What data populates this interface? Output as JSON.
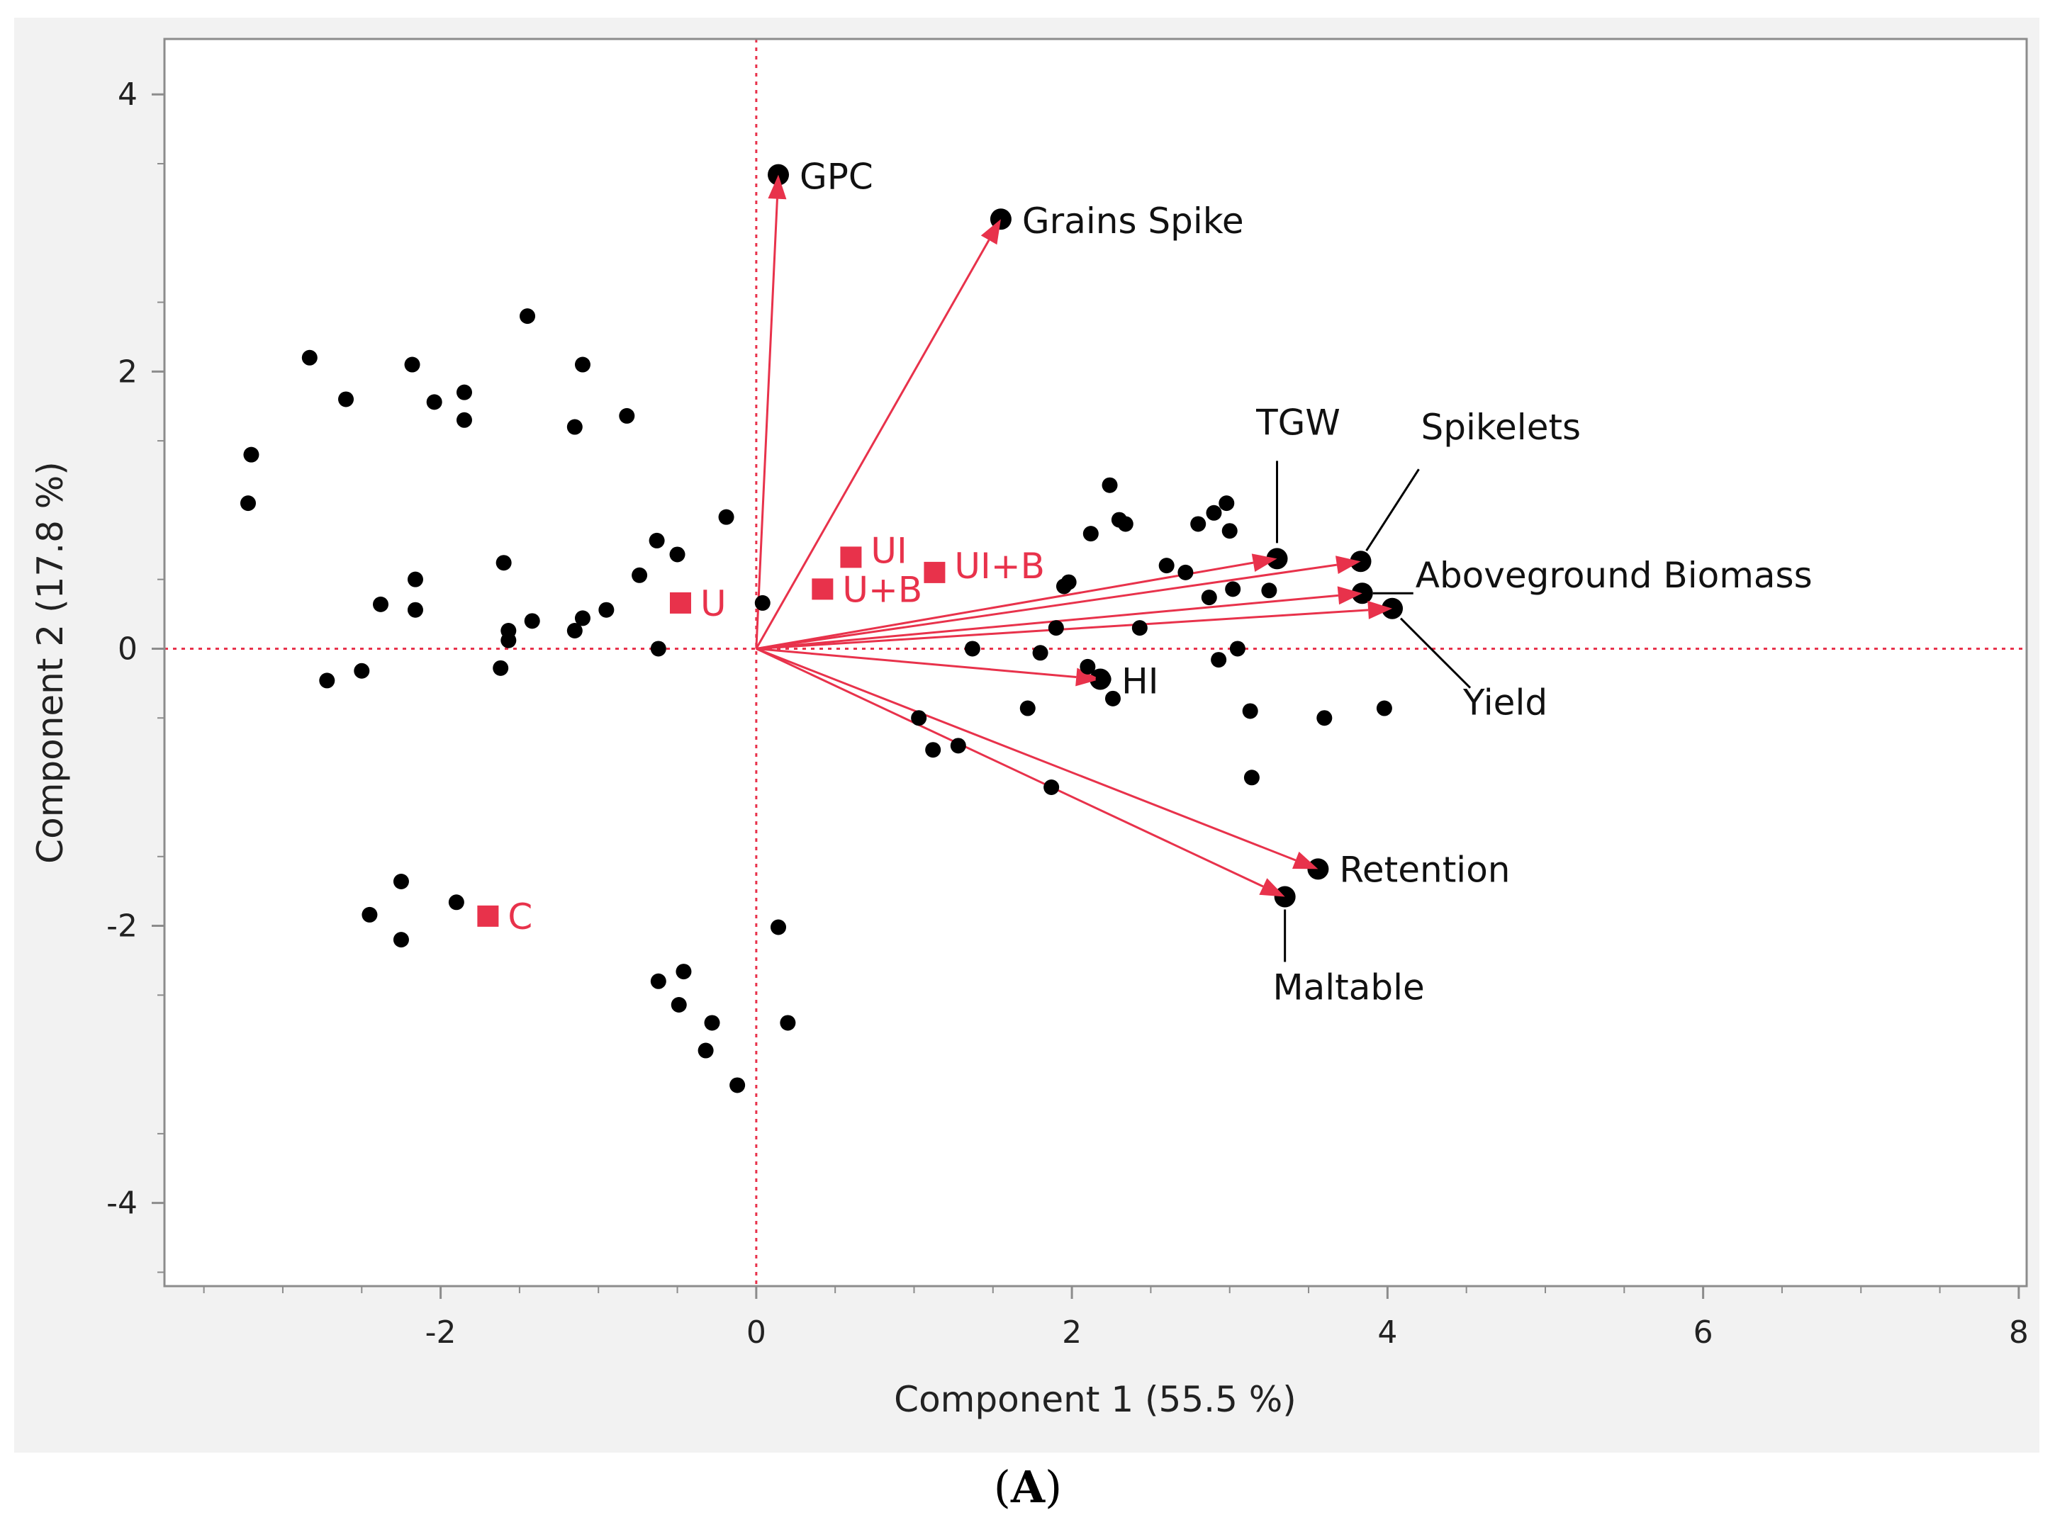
{
  "chart_data": {
    "type": "scatter",
    "subtype": "pca-biplot",
    "title": "",
    "caption": {
      "open": "(",
      "letter": "A",
      "close": ")"
    },
    "xlabel": "Component 1  (55.5 %)",
    "ylabel": "Component 2  (17.8 %)",
    "xlim": [
      -3.75,
      8.05
    ],
    "ylim": [
      -4.6,
      4.4
    ],
    "xticks": [
      -2,
      0,
      2,
      4,
      6,
      8
    ],
    "yticks": [
      -4,
      -2,
      0,
      2,
      4
    ],
    "grid": false,
    "colors": {
      "background": "#f2f2f2",
      "plot_background": "#ffffff",
      "points": "#000000",
      "vectors": "#e8324b",
      "reference_lines": "#e8324b",
      "group_markers": "#e8324b",
      "frame": "#8c8c8c",
      "leader": "#000000"
    },
    "points": [
      [
        -3.2,
        1.4
      ],
      [
        -3.22,
        1.05
      ],
      [
        -2.83,
        2.1
      ],
      [
        -2.6,
        1.8
      ],
      [
        -2.72,
        -0.23
      ],
      [
        -2.5,
        -0.16
      ],
      [
        -2.38,
        0.32
      ],
      [
        -2.18,
        2.05
      ],
      [
        -2.16,
        0.5
      ],
      [
        -2.16,
        0.28
      ],
      [
        -2.04,
        1.78
      ],
      [
        -1.85,
        1.85
      ],
      [
        -1.85,
        1.65
      ],
      [
        -1.6,
        0.62
      ],
      [
        -1.57,
        0.13
      ],
      [
        -1.57,
        0.06
      ],
      [
        -1.62,
        -0.14
      ],
      [
        -1.45,
        2.4
      ],
      [
        -1.42,
        0.2
      ],
      [
        -1.15,
        0.13
      ],
      [
        -1.15,
        1.6
      ],
      [
        -1.1,
        2.05
      ],
      [
        -1.1,
        0.22
      ],
      [
        -0.95,
        0.28
      ],
      [
        -0.82,
        1.68
      ],
      [
        -0.74,
        0.53
      ],
      [
        -0.63,
        0.78
      ],
      [
        -0.62,
        0.0
      ],
      [
        -0.5,
        0.68
      ],
      [
        -0.19,
        0.95
      ],
      [
        0.04,
        0.33
      ],
      [
        -2.45,
        -1.92
      ],
      [
        -2.25,
        -1.68
      ],
      [
        -2.25,
        -2.1
      ],
      [
        -1.9,
        -1.83
      ],
      [
        -0.62,
        -2.4
      ],
      [
        -0.46,
        -2.33
      ],
      [
        -0.49,
        -2.57
      ],
      [
        -0.28,
        -2.7
      ],
      [
        -0.32,
        -2.9
      ],
      [
        -0.12,
        -3.15
      ],
      [
        0.14,
        -2.01
      ],
      [
        0.2,
        -2.7
      ],
      [
        1.03,
        -0.5
      ],
      [
        1.12,
        -0.73
      ],
      [
        1.28,
        -0.7
      ],
      [
        1.37,
        0.0
      ],
      [
        1.72,
        -0.43
      ],
      [
        1.8,
        -0.03
      ],
      [
        1.87,
        -1.0
      ],
      [
        1.9,
        0.15
      ],
      [
        1.95,
        0.45
      ],
      [
        1.98,
        0.48
      ],
      [
        2.1,
        -0.13
      ],
      [
        2.12,
        0.83
      ],
      [
        2.2,
        -0.22
      ],
      [
        2.24,
        1.18
      ],
      [
        2.26,
        -0.36
      ],
      [
        2.3,
        0.93
      ],
      [
        2.34,
        0.9
      ],
      [
        2.43,
        0.15
      ],
      [
        2.6,
        0.6
      ],
      [
        2.72,
        0.55
      ],
      [
        2.8,
        0.9
      ],
      [
        2.87,
        0.37
      ],
      [
        2.9,
        0.98
      ],
      [
        2.93,
        -0.08
      ],
      [
        2.98,
        1.05
      ],
      [
        3.0,
        0.85
      ],
      [
        3.02,
        0.43
      ],
      [
        3.05,
        0.0
      ],
      [
        3.13,
        -0.45
      ],
      [
        3.14,
        -0.93
      ],
      [
        3.25,
        0.42
      ],
      [
        3.6,
        -0.5
      ],
      [
        3.98,
        -0.43
      ]
    ],
    "vectors": [
      {
        "name": "GPC",
        "x": 0.14,
        "y": 3.42
      },
      {
        "name": "Grains Spike",
        "x": 1.55,
        "y": 3.1
      },
      {
        "name": "TGW",
        "x": 3.3,
        "y": 0.65
      },
      {
        "name": "Spikelets",
        "x": 3.83,
        "y": 0.63
      },
      {
        "name": "Aboveground Biomass",
        "x": 3.84,
        "y": 0.4
      },
      {
        "name": "Yield",
        "x": 4.03,
        "y": 0.29
      },
      {
        "name": "HI",
        "x": 2.18,
        "y": -0.22
      },
      {
        "name": "Retention",
        "x": 3.56,
        "y": -1.59
      },
      {
        "name": "Maltable",
        "x": 3.35,
        "y": -1.79
      }
    ],
    "groups": [
      {
        "name": "U",
        "x": -0.48,
        "y": 0.33
      },
      {
        "name": "UI",
        "x": 0.6,
        "y": 0.66
      },
      {
        "name": "U+B",
        "x": 0.42,
        "y": 0.43
      },
      {
        "name": "UI+B",
        "x": 1.13,
        "y": 0.55
      },
      {
        "name": "C",
        "x": -1.7,
        "y": -1.93
      }
    ]
  }
}
